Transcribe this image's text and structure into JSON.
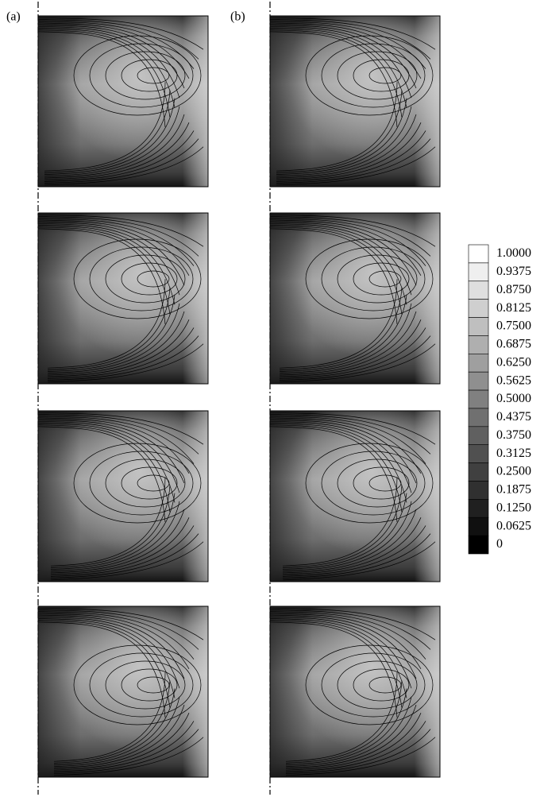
{
  "chart_data": {
    "type": "contour",
    "panel_labels": [
      "(a)",
      "(b)"
    ],
    "colorbar": {
      "lim": [
        0,
        1
      ],
      "ticks": [
        {
          "value": 1,
          "label": "1.0000"
        },
        0.9375,
        {
          "value": 0.875,
          "label": "0.8750"
        },
        0.8125,
        {
          "value": 0.75,
          "label": "0.7500"
        },
        0.6875,
        {
          "value": 0.625,
          "label": "0.6250"
        },
        0.5625,
        {
          "value": 0.5,
          "label": "0.5000"
        },
        0.4375,
        {
          "value": 0.375,
          "label": "0.3750"
        },
        0.3125,
        {
          "value": 0.25,
          "label": "0.2500"
        },
        0.1875,
        {
          "value": 0.125,
          "label": "0.1250"
        },
        0.0625,
        0
      ]
    }
  }
}
